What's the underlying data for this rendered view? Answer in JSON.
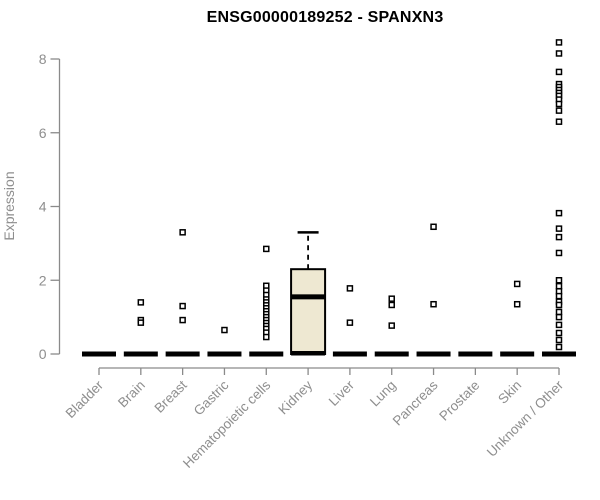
{
  "chart_data": {
    "type": "boxplot",
    "title": "ENSG00000189252 - SPANXN3",
    "ylabel": "Expression",
    "xlabel": "",
    "ylim": [
      0,
      8.6
    ],
    "yticks": [
      0,
      2,
      4,
      6,
      8
    ],
    "grid": false,
    "legend": false,
    "boxes": [
      {
        "category": "Bladder",
        "whisker_low": 0,
        "q1": 0,
        "median": 0,
        "q3": 0,
        "whisker_high": 0,
        "outliers": []
      },
      {
        "category": "Brain",
        "whisker_low": 0,
        "q1": 0,
        "median": 0,
        "q3": 0,
        "whisker_high": 0,
        "outliers": [
          1.4,
          0.92,
          0.85
        ]
      },
      {
        "category": "Breast",
        "whisker_low": 0,
        "q1": 0,
        "median": 0,
        "q3": 0,
        "whisker_high": 0,
        "outliers": [
          3.3,
          1.3,
          0.92
        ]
      },
      {
        "category": "Gastric",
        "whisker_low": 0,
        "q1": 0,
        "median": 0,
        "q3": 0,
        "whisker_high": 0,
        "outliers": [
          0.65
        ]
      },
      {
        "category": "Hematopoietic cells",
        "whisker_low": 0,
        "q1": 0,
        "median": 0,
        "q3": 0,
        "whisker_high": 0,
        "outliers": [
          2.85,
          1.85,
          1.72,
          1.6,
          1.48,
          1.4,
          1.32,
          1.24,
          1.16,
          1.08,
          1.0,
          0.92,
          0.84,
          0.76,
          0.68,
          0.58,
          0.46
        ]
      },
      {
        "category": "Kidney",
        "whisker_low": 0,
        "q1": 0,
        "median": 1.55,
        "q3": 2.3,
        "whisker_high": 3.3,
        "outliers": []
      },
      {
        "category": "Liver",
        "whisker_low": 0,
        "q1": 0,
        "median": 0,
        "q3": 0,
        "whisker_high": 0,
        "outliers": [
          1.78,
          0.85
        ]
      },
      {
        "category": "Lung",
        "whisker_low": 0,
        "q1": 0,
        "median": 0,
        "q3": 0,
        "whisker_high": 0,
        "outliers": [
          1.5,
          1.33,
          0.77
        ]
      },
      {
        "category": "Pancreas",
        "whisker_low": 0,
        "q1": 0,
        "median": 0,
        "q3": 0,
        "whisker_high": 0,
        "outliers": [
          3.45,
          1.35
        ]
      },
      {
        "category": "Prostate",
        "whisker_low": 0,
        "q1": 0,
        "median": 0,
        "q3": 0,
        "whisker_high": 0,
        "outliers": []
      },
      {
        "category": "Skin",
        "whisker_low": 0,
        "q1": 0,
        "median": 0,
        "q3": 0,
        "whisker_high": 0,
        "outliers": [
          1.9,
          1.35
        ]
      },
      {
        "category": "Unknown / Other",
        "whisker_low": 0,
        "q1": 0,
        "median": 0,
        "q3": 0,
        "whisker_high": 0,
        "outliers": [
          8.45,
          8.15,
          7.65,
          7.32,
          7.24,
          7.16,
          7.08,
          7.0,
          6.9,
          6.78,
          6.6,
          6.3,
          3.82,
          3.4,
          3.17,
          2.74,
          2.0,
          1.84,
          1.7,
          1.57,
          1.42,
          1.33,
          1.14,
          1.0,
          0.79,
          0.57,
          0.38,
          0.19
        ]
      }
    ],
    "colors": {
      "box_fill": "#eee8d2",
      "data": "#000000",
      "axis": "#8a8a8a",
      "tick_text": "#8e8e8e",
      "title_text": "#000000"
    }
  }
}
